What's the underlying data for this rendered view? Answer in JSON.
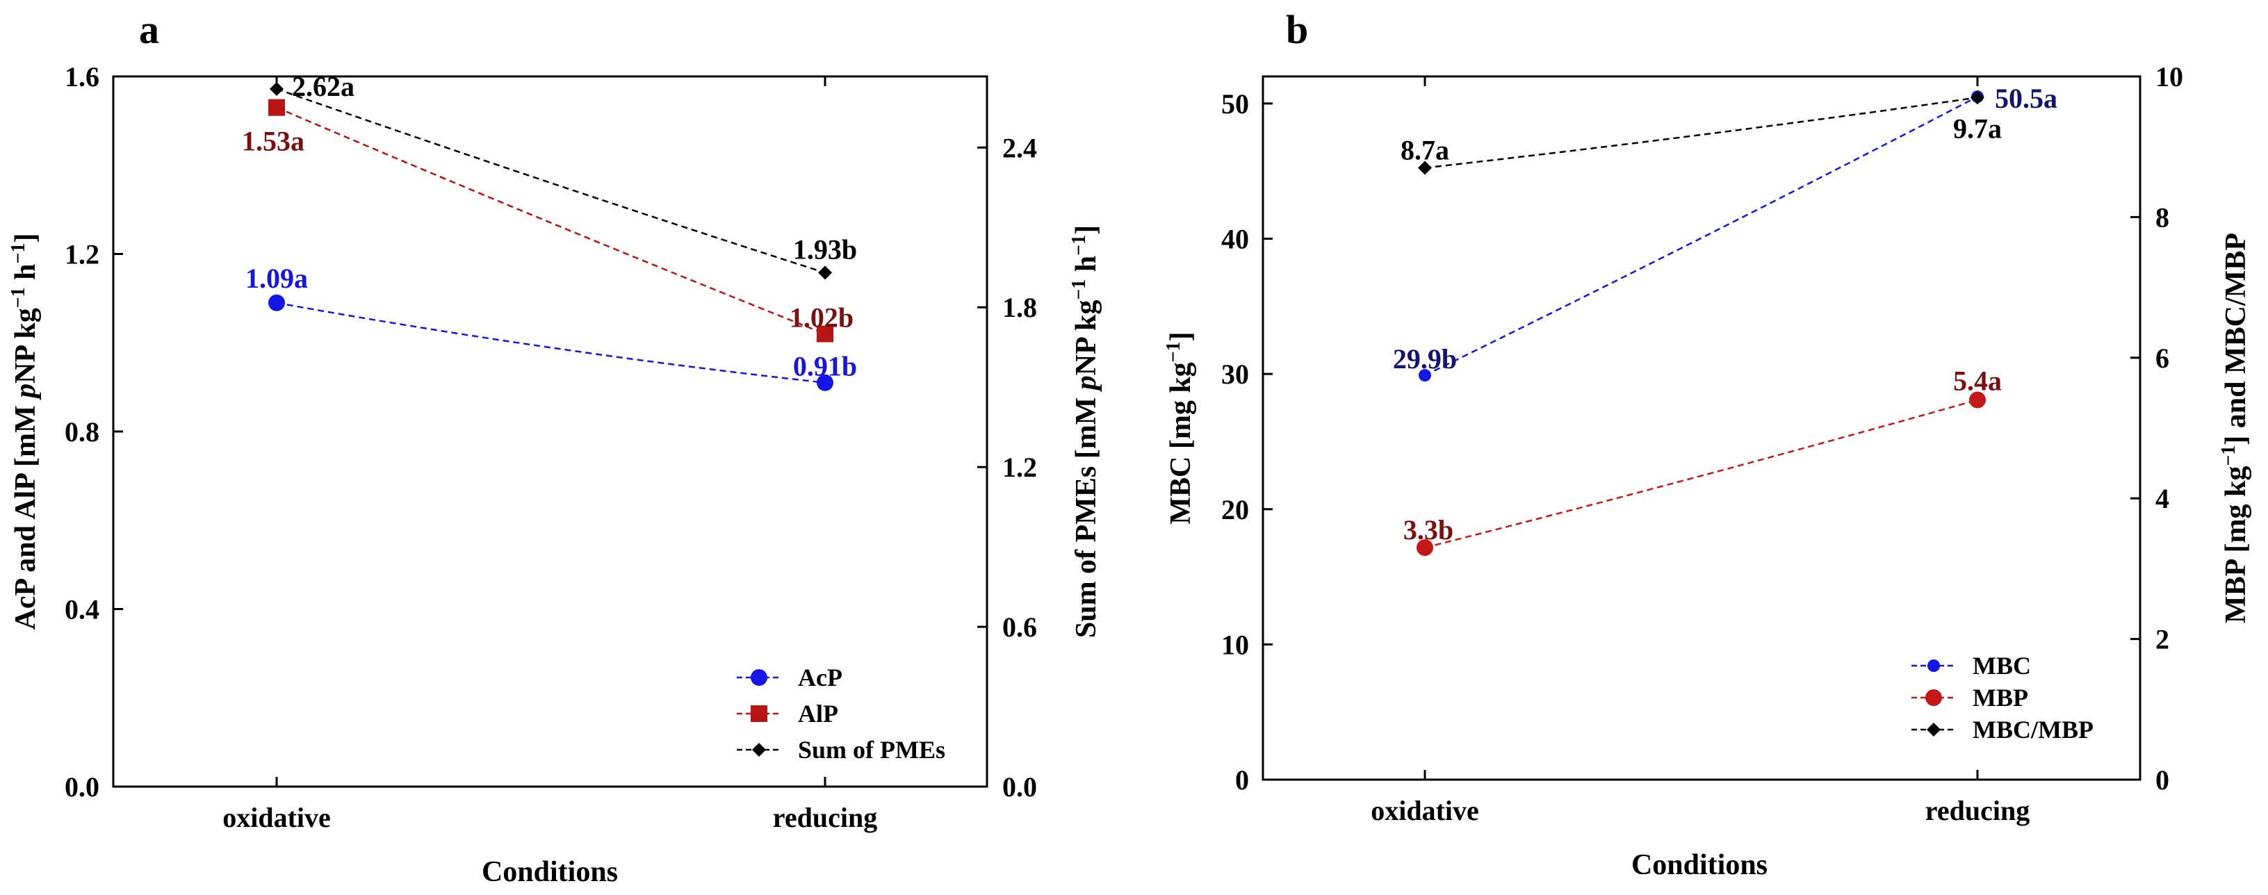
{
  "chart_data": [
    {
      "panel": "a",
      "type": "line",
      "categories": [
        "oxidative",
        "reducing"
      ],
      "xlabel": "Conditions",
      "ylabel_left": "AcP and AlP [mM pNP kg−1 h−1]",
      "ylabel_left_parts": {
        "pre": "AcP and AlP [mM ",
        "italic": "p",
        "mid": "NP kg",
        "sup1": "−1",
        "mid2": " h",
        "sup2": "−1",
        "post": "]"
      },
      "ylabel_right": "Sum of PMEs [mM pNP kg−1 h−1]",
      "ylabel_right_parts": {
        "pre": "Sum of PMEs [mM ",
        "italic": "p",
        "mid": "NP kg",
        "sup1": "−1",
        "mid2": " h",
        "sup2": "−1",
        "post": "]"
      },
      "ylim_left": [
        0,
        1.6
      ],
      "yticks_left": [
        "0.0",
        "0.4",
        "0.8",
        "1.2",
        "1.6"
      ],
      "ylim_right": [
        0,
        2.667
      ],
      "yticks_right": [
        "0.0",
        "0.6",
        "1.2",
        "1.8",
        "2.4"
      ],
      "legend_position": "bottom-right",
      "series": [
        {
          "name": "AcP",
          "axis": "left",
          "values": [
            1.09,
            0.91
          ],
          "labels": [
            "1.09a",
            "0.91b"
          ],
          "color": "#1515e6",
          "marker": "circle"
        },
        {
          "name": "AlP",
          "axis": "left",
          "values": [
            1.53,
            1.02
          ],
          "labels": [
            "1.53a",
            "1.02b"
          ],
          "color": "#b81414",
          "label_color": "#7a1010",
          "marker": "square"
        },
        {
          "name": "Sum of PMEs",
          "axis": "right",
          "values": [
            2.62,
            1.93
          ],
          "labels": [
            "2.62a",
            "1.93b"
          ],
          "color": "#000000",
          "marker": "diamond"
        }
      ]
    },
    {
      "panel": "b",
      "type": "line",
      "categories": [
        "oxidative",
        "reducing"
      ],
      "xlabel": "Conditions",
      "ylabel_left": "MBC [mg kg−1]",
      "ylabel_left_parts": {
        "pre": "MBC [mg kg",
        "sup1": "−1",
        "post": "]"
      },
      "ylabel_right": "MBP [mg kg−1] and MBC/MBP",
      "ylabel_right_parts": {
        "pre": "MBP [mg kg",
        "sup1": "−1",
        "post": "] and MBC/MBP"
      },
      "ylim_left": [
        0,
        52
      ],
      "yticks_left": [
        "0",
        "10",
        "20",
        "30",
        "40",
        "50"
      ],
      "ylim_right": [
        0,
        10
      ],
      "yticks_right": [
        "0",
        "2",
        "4",
        "6",
        "8",
        "10"
      ],
      "legend_position": "bottom-right",
      "series": [
        {
          "name": "MBC",
          "axis": "left",
          "values": [
            29.9,
            50.5
          ],
          "labels": [
            "29.9b",
            "50.5a"
          ],
          "color": "#1515e6",
          "label_color": "#141470",
          "marker": "small-circle"
        },
        {
          "name": "MBP",
          "axis": "right",
          "values": [
            3.3,
            5.4
          ],
          "labels": [
            "3.3b",
            "5.4a"
          ],
          "color": "#c41818",
          "label_color": "#7a1010",
          "marker": "circle"
        },
        {
          "name": "MBC/MBP",
          "axis": "right",
          "values": [
            8.7,
            9.7
          ],
          "labels": [
            "8.7a",
            "9.7a"
          ],
          "color": "#000000",
          "marker": "diamond"
        }
      ]
    }
  ]
}
